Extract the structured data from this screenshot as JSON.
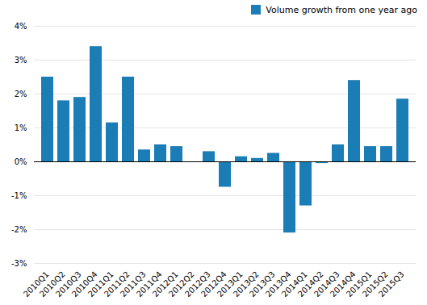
{
  "chart_data": {
    "type": "bar",
    "categories": [
      "2010Q1",
      "2010Q2",
      "2010Q3",
      "2010Q4",
      "2011Q1",
      "2011Q2",
      "2011Q3",
      "2011Q4",
      "2012Q1",
      "2012Q2",
      "2012Q3",
      "2012Q4",
      "2013Q1",
      "2013Q2",
      "2013Q3",
      "2013Q4",
      "2014Q1",
      "2014Q2",
      "2014Q3",
      "2014Q4",
      "2015Q1",
      "2015Q2",
      "2015Q3"
    ],
    "series": [
      {
        "name": "Volume growth from one year ago",
        "color": "#1a7db5",
        "values": [
          2.5,
          1.8,
          1.9,
          3.4,
          1.15,
          2.5,
          0.35,
          0.5,
          0.45,
          0.0,
          0.3,
          -0.75,
          0.15,
          0.1,
          0.25,
          -2.1,
          -1.3,
          -0.05,
          0.5,
          2.4,
          0.45,
          0.45,
          1.85
        ]
      }
    ],
    "ylim": [
      -3,
      4
    ],
    "yticks": [
      {
        "value": -3,
        "label": "-3%"
      },
      {
        "value": -2,
        "label": "-2%"
      },
      {
        "value": -1,
        "label": "-1%"
      },
      {
        "value": 0,
        "label": "0%"
      },
      {
        "value": 1,
        "label": "1%"
      },
      {
        "value": 2,
        "label": "2%"
      },
      {
        "value": 3,
        "label": "3%"
      },
      {
        "value": 4,
        "label": "4%"
      }
    ],
    "grid": true,
    "legend": "upper right"
  }
}
